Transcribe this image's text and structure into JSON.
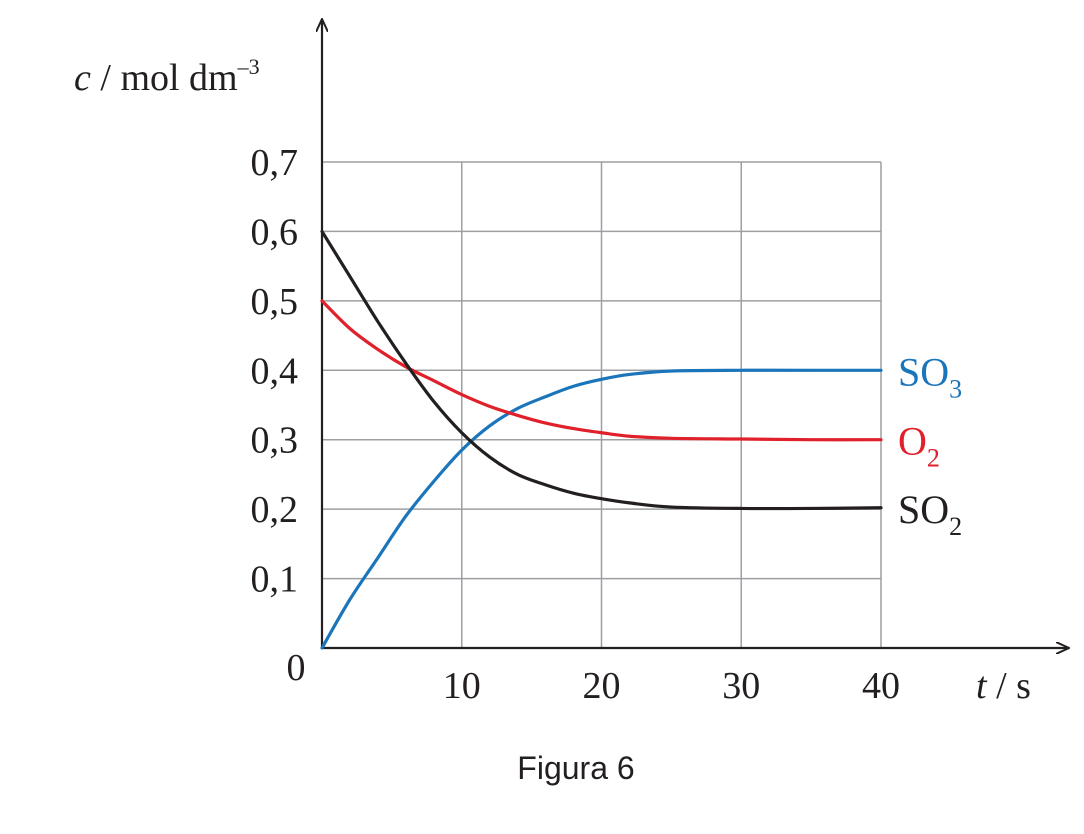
{
  "figure": {
    "caption": "Figura 6"
  },
  "chart_data": {
    "type": "line",
    "ylabel": {
      "var": "c",
      "unit": "mol dm",
      "exp": "–3"
    },
    "xlabel": {
      "var": "t",
      "unit": "s"
    },
    "xlim": [
      0,
      40
    ],
    "ylim": [
      0,
      0.7
    ],
    "x_ticks": [
      "10",
      "20",
      "30",
      "40"
    ],
    "y_ticks": [
      "0,1",
      "0,2",
      "0,3",
      "0,4",
      "0,5",
      "0,6",
      "0,7"
    ],
    "origin_label": "0",
    "grid": true,
    "series": [
      {
        "name": "SO3",
        "label_main": "SO",
        "label_sub": "3",
        "color": "#1b75bb",
        "points": [
          [
            0,
            0
          ],
          [
            2,
            0.07
          ],
          [
            4,
            0.13
          ],
          [
            6,
            0.19
          ],
          [
            8,
            0.24
          ],
          [
            10,
            0.285
          ],
          [
            12,
            0.32
          ],
          [
            14,
            0.345
          ],
          [
            16,
            0.362
          ],
          [
            18,
            0.377
          ],
          [
            20,
            0.387
          ],
          [
            22,
            0.394
          ],
          [
            25,
            0.399
          ],
          [
            30,
            0.4
          ],
          [
            35,
            0.4
          ],
          [
            40,
            0.4
          ]
        ]
      },
      {
        "name": "O2",
        "label_main": "O",
        "label_sub": "2",
        "color": "#e0202a",
        "points": [
          [
            0,
            0.5
          ],
          [
            2,
            0.46
          ],
          [
            4,
            0.43
          ],
          [
            6,
            0.405
          ],
          [
            8,
            0.385
          ],
          [
            10,
            0.365
          ],
          [
            12,
            0.348
          ],
          [
            14,
            0.335
          ],
          [
            16,
            0.324
          ],
          [
            18,
            0.316
          ],
          [
            20,
            0.31
          ],
          [
            22,
            0.305
          ],
          [
            25,
            0.302
          ],
          [
            30,
            0.301
          ],
          [
            35,
            0.3
          ],
          [
            40,
            0.3
          ]
        ]
      },
      {
        "name": "SO2",
        "label_main": "SO",
        "label_sub": "2",
        "color": "#231f20",
        "points": [
          [
            0,
            0.6
          ],
          [
            2,
            0.535
          ],
          [
            4,
            0.47
          ],
          [
            6,
            0.41
          ],
          [
            8,
            0.355
          ],
          [
            10,
            0.31
          ],
          [
            12,
            0.275
          ],
          [
            14,
            0.25
          ],
          [
            16,
            0.235
          ],
          [
            18,
            0.223
          ],
          [
            20,
            0.215
          ],
          [
            22,
            0.209
          ],
          [
            25,
            0.203
          ],
          [
            30,
            0.201
          ],
          [
            35,
            0.201
          ],
          [
            40,
            0.202
          ]
        ]
      }
    ]
  }
}
